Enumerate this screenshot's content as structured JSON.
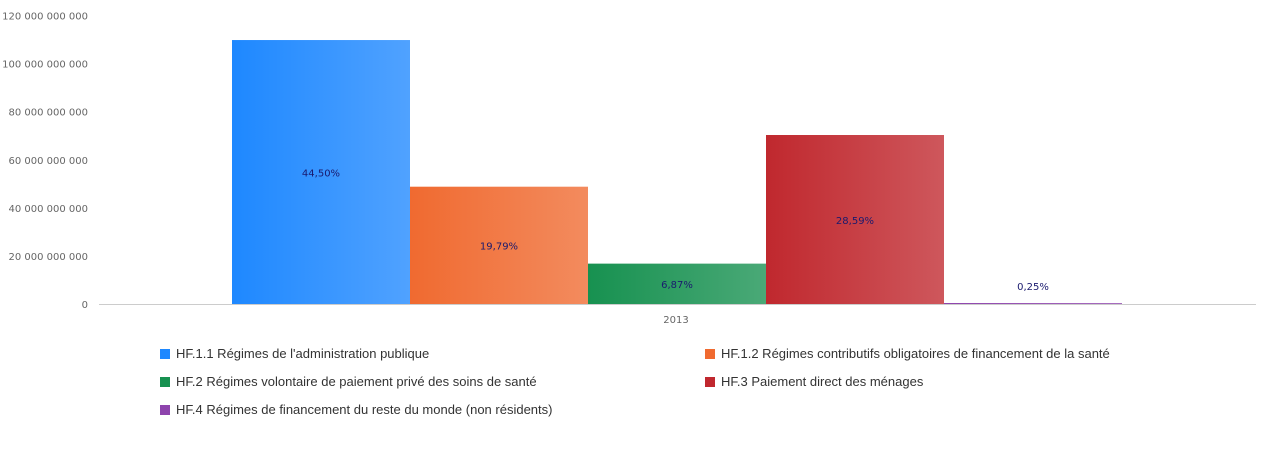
{
  "chart_data": {
    "type": "bar",
    "categories": [
      "2013"
    ],
    "ylim": [
      0,
      120000000000
    ],
    "yticks": [
      0,
      20000000000,
      40000000000,
      60000000000,
      80000000000,
      100000000000,
      120000000000
    ],
    "ytick_labels": [
      "0",
      "20 000 000 000",
      "40 000 000 000",
      "60 000 000 000",
      "80 000 000 000",
      "100 000 000 000",
      "120 000 000 000"
    ],
    "grid": false,
    "legend_position": "bottom",
    "series": [
      {
        "name": "HF.1.1 Régimes de l'administration publique",
        "values": [
          110000000000
        ],
        "label": "44,50%",
        "color": "#1e88ff"
      },
      {
        "name": "HF.1.2 Régimes contributifs obligatoires de financement de la santé",
        "values": [
          49000000000
        ],
        "label": "19,79%",
        "color": "#f06a30"
      },
      {
        "name": "HF.2 Régimes volontaire de paiement privé des soins de santé",
        "values": [
          17000000000
        ],
        "label": "6,87%",
        "color": "#179150"
      },
      {
        "name": "HF.3 Paiement direct des ménages",
        "values": [
          70500000000
        ],
        "label": "28,59%",
        "color": "#c0282e"
      },
      {
        "name": "HF.4 Régimes de financement du reste du monde (non résidents)",
        "values": [
          620000000
        ],
        "label": "0,25%",
        "color": "#8e44ad"
      }
    ]
  }
}
